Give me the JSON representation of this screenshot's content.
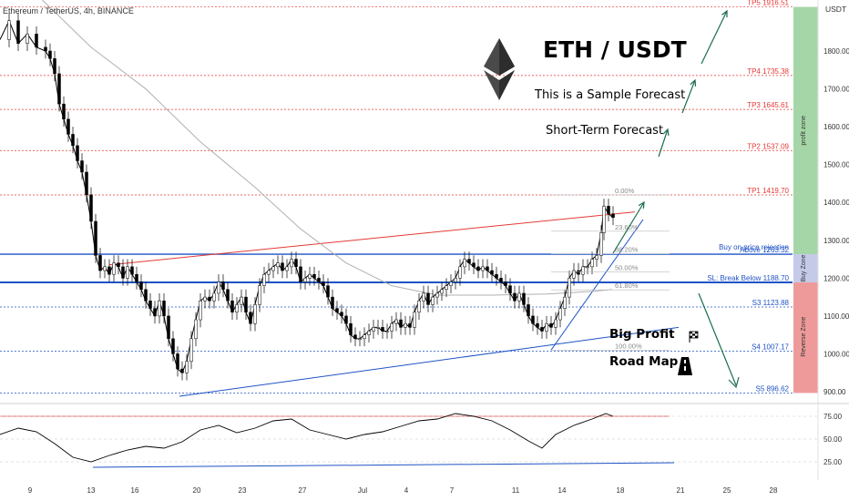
{
  "header": {
    "symbol_line": "Ethereum / TetherUS, 4h, BINANCE"
  },
  "price_axis": {
    "unit": "USDT",
    "ticks": [
      1800,
      1700,
      1600,
      1500,
      1400,
      1300,
      1200,
      1100,
      1000,
      900
    ],
    "tick_labels": [
      "1800.00",
      "1700.00",
      "1600.00",
      "1500.00",
      "1400.00",
      "1300.00",
      "1200.00",
      "1100.00",
      "1000.00",
      "900.00"
    ]
  },
  "rsi_axis": {
    "ticks": [
      75,
      50,
      25
    ],
    "tick_labels": [
      "75.00",
      "50.00",
      "25.00"
    ]
  },
  "time_axis": {
    "labels": [
      "9",
      "13",
      "16",
      "20",
      "23",
      "27",
      "Jul",
      "4",
      "7",
      "11",
      "14",
      "18",
      "21",
      "25",
      "28"
    ]
  },
  "title": "ETH / USDT",
  "subtitle": "This is a Sample Forecast",
  "subtitle2": "Short-Term Forecast",
  "roadmap": {
    "line1": "Big Profit",
    "line2": "Road Map"
  },
  "zones": {
    "profit": "profit zone",
    "buy": "Buy Zone",
    "reverse": "Reverse Zone"
  },
  "colors": {
    "profit_zone": "#a5d6a7",
    "buy_zone": "#c5cae9",
    "reverse_zone": "#ef9a9a",
    "resistance": "#e53935",
    "support": "#1e53c5",
    "arrow": "#1b6e4d",
    "candle": "#000000"
  },
  "chart_data": {
    "type": "candlestick",
    "x_axis": "date (Jun–Jul), 4h candles",
    "ylim": [
      880,
      1950
    ],
    "levels": [
      {
        "label": "TP5 1916.51",
        "value": 1916.51,
        "color": "#e53935"
      },
      {
        "label": "TP4 1735.38",
        "value": 1735.38,
        "color": "#e53935"
      },
      {
        "label": "TP3 1645.61",
        "value": 1645.61,
        "color": "#e53935"
      },
      {
        "label": "TP2 1537.09",
        "value": 1537.09,
        "color": "#e53935"
      },
      {
        "label": "TP1 1419.70",
        "value": 1419.7,
        "color": "#e53935"
      },
      {
        "label": "Buy on price rejection",
        "value": 1275,
        "color": "#1e53c5"
      },
      {
        "label": "Above 1263.32",
        "value": 1263.32,
        "color": "#1e53c5"
      },
      {
        "label": "SL: Break Below 1188.70",
        "value": 1188.7,
        "color": "#1e53c5"
      },
      {
        "label": "S3 1123.88",
        "value": 1123.88,
        "color": "#1e53c5"
      },
      {
        "label": "S4 1007.17",
        "value": 1007.17,
        "color": "#1e53c5"
      },
      {
        "label": "S5 896.62",
        "value": 896.62,
        "color": "#1e53c5"
      }
    ],
    "fib": [
      {
        "label": "0.00%",
        "value": 1420
      },
      {
        "label": "23.60%",
        "value": 1324
      },
      {
        "label": "38.20%",
        "value": 1264
      },
      {
        "label": "50.00%",
        "value": 1217
      },
      {
        "label": "61.80%",
        "value": 1169
      },
      {
        "label": "100.00%",
        "value": 1010
      }
    ],
    "price_path": [
      [
        0,
        1830
      ],
      [
        10,
        1880
      ],
      [
        20,
        1820
      ],
      [
        30,
        1845
      ],
      [
        40,
        1810
      ],
      [
        50,
        1800
      ],
      [
        55,
        1780
      ],
      [
        60,
        1740
      ],
      [
        65,
        1660
      ],
      [
        70,
        1620
      ],
      [
        75,
        1580
      ],
      [
        80,
        1550
      ],
      [
        85,
        1510
      ],
      [
        90,
        1480
      ],
      [
        95,
        1420
      ],
      [
        100,
        1350
      ],
      [
        105,
        1260
      ],
      [
        110,
        1220
      ],
      [
        115,
        1230
      ],
      [
        120,
        1210
      ],
      [
        125,
        1240
      ],
      [
        130,
        1230
      ],
      [
        135,
        1200
      ],
      [
        140,
        1230
      ],
      [
        145,
        1210
      ],
      [
        150,
        1190
      ],
      [
        155,
        1170
      ],
      [
        160,
        1140
      ],
      [
        165,
        1120
      ],
      [
        170,
        1100
      ],
      [
        175,
        1140
      ],
      [
        180,
        1100
      ],
      [
        185,
        1040
      ],
      [
        190,
        1000
      ],
      [
        195,
        960
      ],
      [
        200,
        950
      ],
      [
        205,
        980
      ],
      [
        210,
        1040
      ],
      [
        215,
        1090
      ],
      [
        220,
        1140
      ],
      [
        225,
        1150
      ],
      [
        230,
        1140
      ],
      [
        235,
        1160
      ],
      [
        240,
        1190
      ],
      [
        245,
        1170
      ],
      [
        250,
        1140
      ],
      [
        255,
        1110
      ],
      [
        260,
        1130
      ],
      [
        265,
        1150
      ],
      [
        270,
        1110
      ],
      [
        275,
        1080
      ],
      [
        280,
        1130
      ],
      [
        285,
        1180
      ],
      [
        290,
        1210
      ],
      [
        295,
        1220
      ],
      [
        300,
        1230
      ],
      [
        305,
        1240
      ],
      [
        310,
        1220
      ],
      [
        315,
        1230
      ],
      [
        320,
        1250
      ],
      [
        325,
        1230
      ],
      [
        330,
        1190
      ],
      [
        335,
        1200
      ],
      [
        340,
        1210
      ],
      [
        345,
        1200
      ],
      [
        350,
        1190
      ],
      [
        355,
        1180
      ],
      [
        360,
        1150
      ],
      [
        365,
        1120
      ],
      [
        370,
        1110
      ],
      [
        375,
        1100
      ],
      [
        380,
        1080
      ],
      [
        385,
        1050
      ],
      [
        390,
        1040
      ],
      [
        395,
        1040
      ],
      [
        400,
        1050
      ],
      [
        405,
        1060
      ],
      [
        410,
        1070
      ],
      [
        415,
        1070
      ],
      [
        420,
        1060
      ],
      [
        425,
        1060
      ],
      [
        430,
        1080
      ],
      [
        435,
        1090
      ],
      [
        440,
        1070
      ],
      [
        445,
        1080
      ],
      [
        450,
        1070
      ],
      [
        455,
        1110
      ],
      [
        460,
        1140
      ],
      [
        465,
        1160
      ],
      [
        470,
        1130
      ],
      [
        475,
        1150
      ],
      [
        480,
        1160
      ],
      [
        485,
        1170
      ],
      [
        490,
        1180
      ],
      [
        495,
        1190
      ],
      [
        500,
        1200
      ],
      [
        505,
        1230
      ],
      [
        510,
        1250
      ],
      [
        515,
        1240
      ],
      [
        520,
        1230
      ],
      [
        525,
        1220
      ],
      [
        530,
        1230
      ],
      [
        535,
        1220
      ],
      [
        540,
        1210
      ],
      [
        545,
        1200
      ],
      [
        550,
        1190
      ],
      [
        555,
        1180
      ],
      [
        560,
        1160
      ],
      [
        565,
        1140
      ],
      [
        570,
        1160
      ],
      [
        575,
        1130
      ],
      [
        580,
        1100
      ],
      [
        585,
        1080
      ],
      [
        590,
        1070
      ],
      [
        595,
        1060
      ],
      [
        600,
        1080
      ],
      [
        605,
        1070
      ],
      [
        610,
        1090
      ],
      [
        615,
        1120
      ],
      [
        620,
        1150
      ],
      [
        625,
        1200
      ],
      [
        630,
        1220
      ],
      [
        635,
        1210
      ],
      [
        640,
        1230
      ],
      [
        645,
        1230
      ],
      [
        650,
        1250
      ],
      [
        655,
        1260
      ],
      [
        660,
        1320
      ],
      [
        663,
        1390
      ],
      [
        668,
        1370
      ],
      [
        673,
        1360
      ]
    ],
    "rsi_path": [
      [
        0,
        55
      ],
      [
        20,
        62
      ],
      [
        40,
        58
      ],
      [
        60,
        45
      ],
      [
        80,
        30
      ],
      [
        100,
        25
      ],
      [
        120,
        32
      ],
      [
        140,
        38
      ],
      [
        160,
        42
      ],
      [
        180,
        40
      ],
      [
        200,
        47
      ],
      [
        220,
        60
      ],
      [
        240,
        65
      ],
      [
        260,
        57
      ],
      [
        280,
        62
      ],
      [
        300,
        70
      ],
      [
        320,
        72
      ],
      [
        340,
        60
      ],
      [
        360,
        55
      ],
      [
        380,
        50
      ],
      [
        400,
        55
      ],
      [
        420,
        58
      ],
      [
        440,
        64
      ],
      [
        460,
        70
      ],
      [
        480,
        72
      ],
      [
        500,
        78
      ],
      [
        520,
        75
      ],
      [
        540,
        70
      ],
      [
        560,
        60
      ],
      [
        580,
        48
      ],
      [
        595,
        40
      ],
      [
        610,
        55
      ],
      [
        630,
        65
      ],
      [
        650,
        72
      ],
      [
        665,
        78
      ],
      [
        673,
        75
      ]
    ]
  }
}
